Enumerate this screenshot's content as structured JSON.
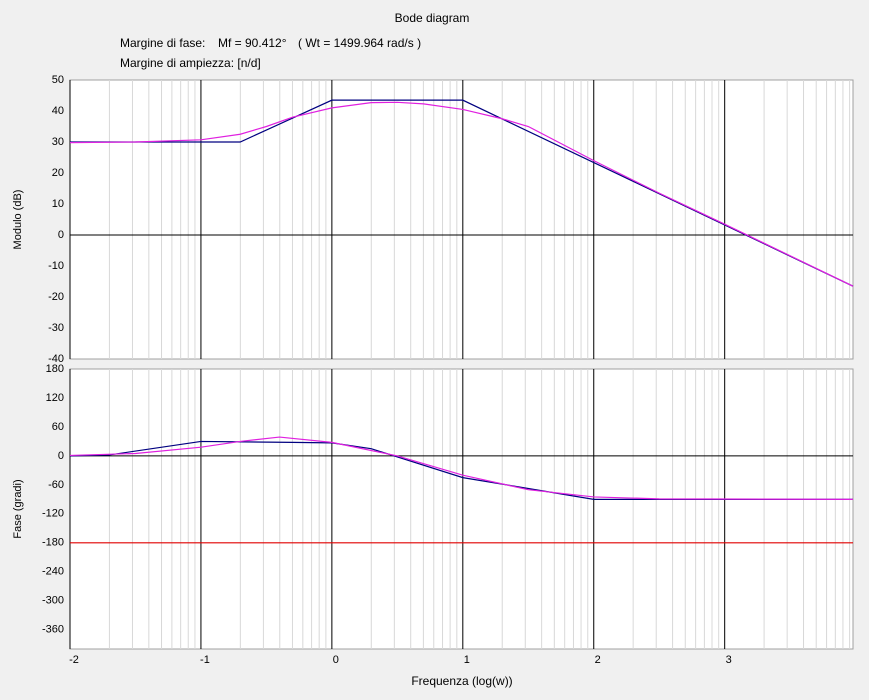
{
  "header": {
    "title": "Bode diagram",
    "phase_margin_label": "Margine di fase:",
    "phase_margin": "Mf = 90.412°",
    "crossover": "( Wt = 1499.964 rad/s )",
    "gain_margin": "Margine di ampiezza: [n/d]"
  },
  "chart_data": [
    {
      "type": "line",
      "y_label": "Modulo (dB)",
      "xlim": [
        -2,
        3.98
      ],
      "xticks": [
        -2,
        -1,
        0,
        1,
        2,
        3
      ],
      "ylim": [
        -40,
        50
      ],
      "yticks": [
        50,
        40,
        30,
        20,
        10,
        0,
        -10,
        -20,
        -30,
        -40
      ],
      "log_minor_grid": true,
      "series": [
        {
          "color": "#000080",
          "x": [
            -2,
            -0.7,
            0,
            1,
            3.98
          ],
          "values": [
            30,
            30,
            43.5,
            43.5,
            -16.5
          ]
        },
        {
          "color": "#e020e0",
          "x": [
            -2,
            -1.5,
            -1,
            -0.7,
            -0.5,
            -0.3,
            0,
            0.3,
            0.5,
            0.7,
            1,
            1.3,
            1.5,
            2,
            2.5,
            3,
            3.98
          ],
          "values": [
            29.8,
            30,
            30.7,
            32.5,
            35,
            38,
            41,
            42.7,
            42.8,
            42.3,
            40.5,
            37.5,
            35,
            24,
            13.5,
            3.5,
            -16.5
          ]
        }
      ]
    },
    {
      "type": "line",
      "y_label": "Fase (gradi)",
      "x_label": "Frequenza (log(w))",
      "xlim": [
        -2,
        3.98
      ],
      "xticks": [
        -2,
        -1,
        0,
        1,
        2,
        3
      ],
      "ylim": [
        -400,
        180
      ],
      "yticks": [
        180,
        120,
        60,
        0,
        -60,
        -120,
        -180,
        -240,
        -300,
        -360
      ],
      "log_minor_grid": true,
      "series": [
        {
          "color": "#000080",
          "x": [
            -2,
            -1.7,
            -1,
            -0.3,
            0,
            0.3,
            1,
            2,
            3.98
          ],
          "values": [
            0,
            2,
            30,
            28,
            27,
            15,
            -45,
            -90,
            -90
          ]
        },
        {
          "color": "#e020e0",
          "x": [
            -2,
            -1.5,
            -1,
            -0.7,
            -0.4,
            0,
            0.5,
            1,
            1.5,
            2,
            2.5,
            3.98
          ],
          "values": [
            1,
            5,
            18,
            30,
            39,
            28,
            0,
            -40,
            -70,
            -85,
            -89,
            -90
          ]
        },
        {
          "color": "#e00000",
          "x": [
            -2,
            3.98
          ],
          "values": [
            -180,
            -180
          ]
        }
      ]
    }
  ]
}
